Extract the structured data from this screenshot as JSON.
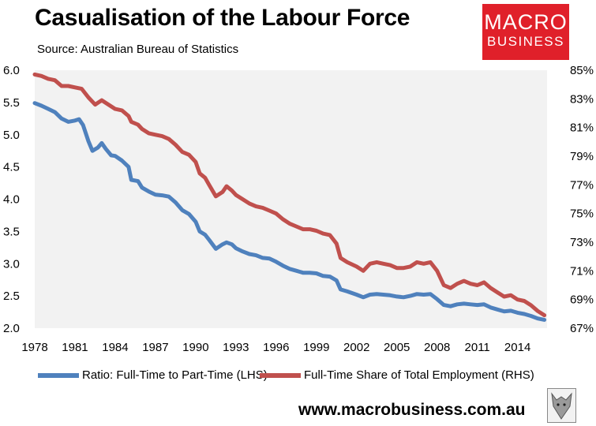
{
  "header": {
    "title": "Casualisation of the Labour Force",
    "source": "Source: Australian Bureau of Statistics"
  },
  "logo": {
    "line1": "MACRO",
    "line2": "BUSINESS"
  },
  "footer": {
    "url": "www.macrobusiness.com.au"
  },
  "colors": {
    "lhs_series": "#4f81bd",
    "rhs_series": "#c0504d",
    "plot_bg": "#f2f2f2"
  },
  "chart_data": {
    "type": "line",
    "title": "Casualisation of the Labour Force",
    "subtitle": "Source: Australian Bureau of Statistics",
    "x_ticks": [
      "1978",
      "1981",
      "1984",
      "1987",
      "1990",
      "1993",
      "1996",
      "1999",
      "2002",
      "2005",
      "2008",
      "2011",
      "2014"
    ],
    "xlim": [
      1978,
      2016.2
    ],
    "y_left": {
      "ylim": [
        2.0,
        6.0
      ],
      "ticks": [
        "2.0",
        "2.5",
        "3.0",
        "3.5",
        "4.0",
        "4.5",
        "5.0",
        "5.5",
        "6.0"
      ]
    },
    "y_right": {
      "ylim": [
        67,
        85
      ],
      "ticks": [
        "67%",
        "69%",
        "71%",
        "73%",
        "75%",
        "77%",
        "79%",
        "81%",
        "83%",
        "85%"
      ]
    },
    "grid": false,
    "legend_position": "bottom",
    "series": [
      {
        "name": "Ratio: Full-Time to Part-Time (LHS)",
        "axis": "left",
        "points": [
          [
            1978.0,
            5.49
          ],
          [
            1978.5,
            5.45
          ],
          [
            1979.0,
            5.4
          ],
          [
            1979.5,
            5.35
          ],
          [
            1980.0,
            5.25
          ],
          [
            1980.5,
            5.2
          ],
          [
            1981.0,
            5.22
          ],
          [
            1981.3,
            5.24
          ],
          [
            1981.6,
            5.15
          ],
          [
            1982.0,
            4.9
          ],
          [
            1982.3,
            4.75
          ],
          [
            1982.7,
            4.8
          ],
          [
            1983.0,
            4.87
          ],
          [
            1983.3,
            4.78
          ],
          [
            1983.7,
            4.68
          ],
          [
            1984.0,
            4.67
          ],
          [
            1984.5,
            4.6
          ],
          [
            1985.0,
            4.5
          ],
          [
            1985.2,
            4.3
          ],
          [
            1985.7,
            4.28
          ],
          [
            1986.0,
            4.18
          ],
          [
            1986.5,
            4.12
          ],
          [
            1987.0,
            4.07
          ],
          [
            1987.5,
            4.06
          ],
          [
            1988.0,
            4.04
          ],
          [
            1988.5,
            3.95
          ],
          [
            1989.0,
            3.83
          ],
          [
            1989.5,
            3.77
          ],
          [
            1990.0,
            3.65
          ],
          [
            1990.3,
            3.5
          ],
          [
            1990.7,
            3.45
          ],
          [
            1991.0,
            3.37
          ],
          [
            1991.5,
            3.23
          ],
          [
            1992.0,
            3.3
          ],
          [
            1992.3,
            3.33
          ],
          [
            1992.7,
            3.3
          ],
          [
            1993.0,
            3.24
          ],
          [
            1993.5,
            3.19
          ],
          [
            1994.0,
            3.15
          ],
          [
            1994.5,
            3.13
          ],
          [
            1995.0,
            3.09
          ],
          [
            1995.5,
            3.08
          ],
          [
            1996.0,
            3.03
          ],
          [
            1996.5,
            2.97
          ],
          [
            1997.0,
            2.92
          ],
          [
            1997.5,
            2.89
          ],
          [
            1998.0,
            2.86
          ],
          [
            1998.5,
            2.86
          ],
          [
            1999.0,
            2.85
          ],
          [
            1999.5,
            2.81
          ],
          [
            2000.0,
            2.8
          ],
          [
            2000.5,
            2.74
          ],
          [
            2000.8,
            2.6
          ],
          [
            2001.3,
            2.57
          ],
          [
            2002.0,
            2.52
          ],
          [
            2002.5,
            2.48
          ],
          [
            2003.0,
            2.52
          ],
          [
            2003.5,
            2.53
          ],
          [
            2004.0,
            2.52
          ],
          [
            2004.5,
            2.51
          ],
          [
            2005.0,
            2.49
          ],
          [
            2005.5,
            2.48
          ],
          [
            2006.0,
            2.5
          ],
          [
            2006.5,
            2.53
          ],
          [
            2007.0,
            2.52
          ],
          [
            2007.5,
            2.53
          ],
          [
            2008.0,
            2.45
          ],
          [
            2008.5,
            2.36
          ],
          [
            2009.0,
            2.34
          ],
          [
            2009.5,
            2.37
          ],
          [
            2010.0,
            2.38
          ],
          [
            2010.5,
            2.37
          ],
          [
            2011.0,
            2.36
          ],
          [
            2011.5,
            2.37
          ],
          [
            2012.0,
            2.32
          ],
          [
            2012.5,
            2.29
          ],
          [
            2013.0,
            2.26
          ],
          [
            2013.5,
            2.27
          ],
          [
            2014.0,
            2.24
          ],
          [
            2014.5,
            2.22
          ],
          [
            2015.0,
            2.19
          ],
          [
            2015.5,
            2.15
          ],
          [
            2016.0,
            2.13
          ]
        ]
      },
      {
        "name": "Full-Time Share of Total Employment (RHS)",
        "axis": "right",
        "points": [
          [
            1978.0,
            84.7
          ],
          [
            1978.5,
            84.6
          ],
          [
            1979.0,
            84.4
          ],
          [
            1979.5,
            84.3
          ],
          [
            1980.0,
            83.9
          ],
          [
            1980.5,
            83.9
          ],
          [
            1981.0,
            83.8
          ],
          [
            1981.5,
            83.7
          ],
          [
            1982.0,
            83.1
          ],
          [
            1982.5,
            82.6
          ],
          [
            1983.0,
            82.9
          ],
          [
            1983.5,
            82.6
          ],
          [
            1984.0,
            82.3
          ],
          [
            1984.5,
            82.2
          ],
          [
            1985.0,
            81.8
          ],
          [
            1985.2,
            81.4
          ],
          [
            1985.7,
            81.2
          ],
          [
            1986.0,
            80.9
          ],
          [
            1986.5,
            80.6
          ],
          [
            1987.0,
            80.5
          ],
          [
            1987.5,
            80.4
          ],
          [
            1988.0,
            80.2
          ],
          [
            1988.5,
            79.8
          ],
          [
            1989.0,
            79.3
          ],
          [
            1989.5,
            79.1
          ],
          [
            1990.0,
            78.6
          ],
          [
            1990.3,
            77.8
          ],
          [
            1990.7,
            77.5
          ],
          [
            1991.0,
            77.0
          ],
          [
            1991.5,
            76.2
          ],
          [
            1992.0,
            76.5
          ],
          [
            1992.3,
            76.9
          ],
          [
            1992.7,
            76.6
          ],
          [
            1993.0,
            76.3
          ],
          [
            1993.5,
            76.0
          ],
          [
            1994.0,
            75.7
          ],
          [
            1994.5,
            75.5
          ],
          [
            1995.0,
            75.4
          ],
          [
            1995.5,
            75.2
          ],
          [
            1996.0,
            75.0
          ],
          [
            1996.5,
            74.6
          ],
          [
            1997.0,
            74.3
          ],
          [
            1997.5,
            74.1
          ],
          [
            1998.0,
            73.9
          ],
          [
            1998.5,
            73.9
          ],
          [
            1999.0,
            73.8
          ],
          [
            1999.5,
            73.6
          ],
          [
            2000.0,
            73.5
          ],
          [
            2000.5,
            72.9
          ],
          [
            2000.8,
            71.9
          ],
          [
            2001.3,
            71.6
          ],
          [
            2002.0,
            71.3
          ],
          [
            2002.5,
            71.0
          ],
          [
            2003.0,
            71.5
          ],
          [
            2003.5,
            71.6
          ],
          [
            2004.0,
            71.5
          ],
          [
            2004.5,
            71.4
          ],
          [
            2005.0,
            71.2
          ],
          [
            2005.5,
            71.2
          ],
          [
            2006.0,
            71.3
          ],
          [
            2006.5,
            71.6
          ],
          [
            2007.0,
            71.5
          ],
          [
            2007.5,
            71.6
          ],
          [
            2008.0,
            71.0
          ],
          [
            2008.5,
            70.0
          ],
          [
            2009.0,
            69.8
          ],
          [
            2009.5,
            70.1
          ],
          [
            2010.0,
            70.3
          ],
          [
            2010.5,
            70.1
          ],
          [
            2011.0,
            70.0
          ],
          [
            2011.5,
            70.2
          ],
          [
            2012.0,
            69.8
          ],
          [
            2012.5,
            69.5
          ],
          [
            2013.0,
            69.2
          ],
          [
            2013.5,
            69.3
          ],
          [
            2014.0,
            69.0
          ],
          [
            2014.5,
            68.9
          ],
          [
            2015.0,
            68.6
          ],
          [
            2015.5,
            68.2
          ],
          [
            2016.0,
            67.9
          ]
        ]
      }
    ]
  }
}
